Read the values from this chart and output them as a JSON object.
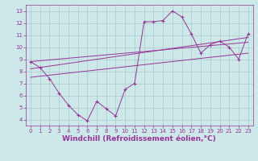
{
  "xlabel": "Windchill (Refroidissement éolien,°C)",
  "bg_color": "#cce8e8",
  "grid_color": "#aacccc",
  "line_color": "#993399",
  "xlim": [
    -0.5,
    23.5
  ],
  "ylim": [
    3.5,
    13.5
  ],
  "xticks": [
    0,
    1,
    2,
    3,
    4,
    5,
    6,
    7,
    8,
    9,
    10,
    11,
    12,
    13,
    14,
    15,
    16,
    17,
    18,
    19,
    20,
    21,
    22,
    23
  ],
  "yticks": [
    4,
    5,
    6,
    7,
    8,
    9,
    10,
    11,
    12,
    13
  ],
  "main_x": [
    0,
    1,
    2,
    3,
    4,
    5,
    6,
    7,
    8,
    9,
    10,
    11,
    12,
    13,
    14,
    15,
    16,
    17,
    18,
    19,
    20,
    21,
    22,
    23
  ],
  "main_y": [
    8.8,
    8.3,
    7.4,
    6.2,
    5.2,
    4.4,
    3.9,
    5.5,
    4.9,
    4.3,
    6.5,
    7.0,
    12.1,
    12.1,
    12.2,
    13.0,
    12.5,
    11.1,
    9.5,
    10.2,
    10.5,
    10.0,
    9.0,
    11.1
  ],
  "trend1_x": [
    0,
    23
  ],
  "trend1_y": [
    8.8,
    10.4
  ],
  "trend2_x": [
    0,
    23
  ],
  "trend2_y": [
    8.2,
    10.8
  ],
  "trend3_x": [
    0,
    23
  ],
  "trend3_y": [
    7.5,
    9.5
  ],
  "font_color": "#993399",
  "tick_fontsize": 5,
  "label_fontsize": 6.5
}
